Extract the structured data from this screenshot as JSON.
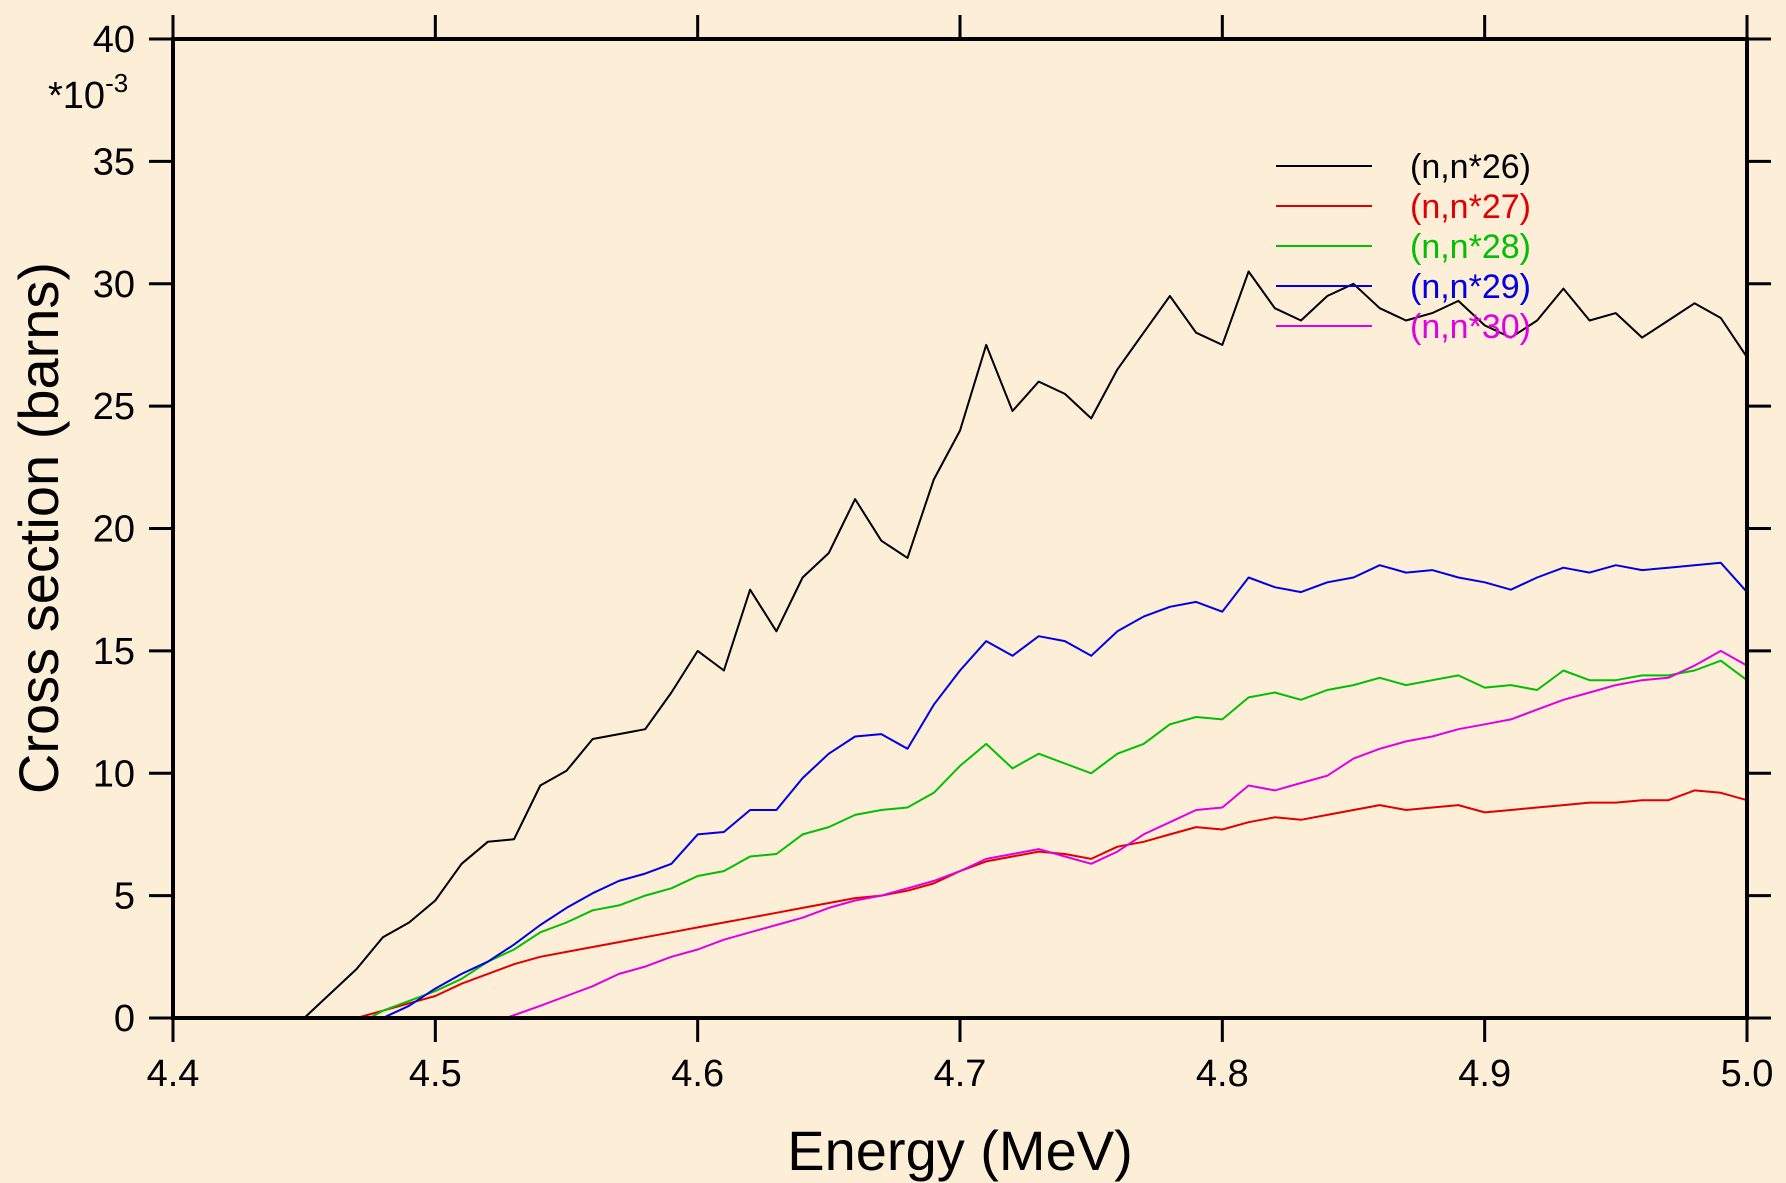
{
  "chart_data": {
    "type": "line",
    "xlabel": "Energy (MeV)",
    "ylabel": "Cross section (barns)",
    "y_multiplier_label": "*10",
    "y_multiplier_exponent": "-3",
    "xlim": [
      4.4,
      5.0
    ],
    "ylim": [
      0,
      40
    ],
    "x_ticks": [
      4.4,
      4.5,
      4.6,
      4.7,
      4.8,
      4.9,
      5.0
    ],
    "x_tick_labels": [
      "4.4",
      "4.5",
      "4.6",
      "4.7",
      "4.8",
      "4.9",
      "5.0"
    ],
    "y_ticks": [
      0,
      5,
      10,
      15,
      20,
      25,
      30,
      35,
      40
    ],
    "y_tick_labels": [
      "0",
      "5",
      "10",
      "15",
      "20",
      "25",
      "30",
      "35",
      "40"
    ],
    "grid": false,
    "legend_position": "top-right",
    "background_color": "#fdeed8",
    "series": [
      {
        "name": "(n,n*26)",
        "color": "#000000",
        "x": [
          4.45,
          4.46,
          4.47,
          4.48,
          4.49,
          4.5,
          4.51,
          4.52,
          4.53,
          4.54,
          4.55,
          4.56,
          4.57,
          4.58,
          4.59,
          4.6,
          4.61,
          4.62,
          4.63,
          4.64,
          4.65,
          4.66,
          4.67,
          4.68,
          4.69,
          4.7,
          4.71,
          4.72,
          4.73,
          4.74,
          4.75,
          4.76,
          4.77,
          4.78,
          4.79,
          4.8,
          4.81,
          4.82,
          4.83,
          4.84,
          4.85,
          4.86,
          4.87,
          4.88,
          4.89,
          4.9,
          4.91,
          4.92,
          4.93,
          4.94,
          4.95,
          4.96,
          4.97,
          4.98,
          4.99,
          5.0
        ],
        "y": [
          0,
          1.0,
          2.0,
          3.3,
          3.9,
          4.8,
          6.3,
          7.2,
          7.3,
          9.5,
          10.1,
          11.4,
          11.6,
          11.8,
          13.3,
          15.0,
          14.2,
          17.5,
          15.8,
          18.0,
          19.0,
          21.2,
          19.5,
          18.8,
          22.0,
          24.0,
          27.5,
          24.8,
          26.0,
          25.5,
          24.5,
          26.5,
          28.0,
          29.5,
          28.0,
          27.5,
          30.5,
          29.0,
          28.5,
          29.5,
          30.0,
          29.0,
          28.5,
          28.8,
          29.3,
          28.3,
          27.8,
          28.5,
          29.8,
          28.5,
          28.8,
          27.8,
          28.5,
          29.2,
          28.6,
          27.0
        ],
        "label_color": "#000000"
      },
      {
        "name": "(n,n*27)",
        "color": "#e00000",
        "x": [
          4.47,
          4.48,
          4.49,
          4.5,
          4.51,
          4.52,
          4.53,
          4.54,
          4.55,
          4.56,
          4.57,
          4.58,
          4.59,
          4.6,
          4.61,
          4.62,
          4.63,
          4.64,
          4.65,
          4.66,
          4.67,
          4.68,
          4.69,
          4.7,
          4.71,
          4.72,
          4.73,
          4.74,
          4.75,
          4.76,
          4.77,
          4.78,
          4.79,
          4.8,
          4.81,
          4.82,
          4.83,
          4.84,
          4.85,
          4.86,
          4.87,
          4.88,
          4.89,
          4.9,
          4.91,
          4.92,
          4.93,
          4.94,
          4.95,
          4.96,
          4.97,
          4.98,
          4.99,
          5.0
        ],
        "y": [
          0,
          0.3,
          0.6,
          0.9,
          1.4,
          1.8,
          2.2,
          2.5,
          2.7,
          2.9,
          3.1,
          3.3,
          3.5,
          3.7,
          3.9,
          4.1,
          4.3,
          4.5,
          4.7,
          4.9,
          5.0,
          5.2,
          5.5,
          6.0,
          6.4,
          6.6,
          6.8,
          6.7,
          6.5,
          7.0,
          7.2,
          7.5,
          7.8,
          7.7,
          8.0,
          8.2,
          8.1,
          8.3,
          8.5,
          8.7,
          8.5,
          8.6,
          8.7,
          8.4,
          8.5,
          8.6,
          8.7,
          8.8,
          8.8,
          8.9,
          8.9,
          9.3,
          9.2,
          8.9
        ],
        "label_color": "#e00000"
      },
      {
        "name": "(n,n*28)",
        "color": "#00c000",
        "x": [
          4.475,
          4.48,
          4.49,
          4.5,
          4.51,
          4.52,
          4.53,
          4.54,
          4.55,
          4.56,
          4.57,
          4.58,
          4.59,
          4.6,
          4.61,
          4.62,
          4.63,
          4.64,
          4.65,
          4.66,
          4.67,
          4.68,
          4.69,
          4.7,
          4.71,
          4.72,
          4.73,
          4.74,
          4.75,
          4.76,
          4.77,
          4.78,
          4.79,
          4.8,
          4.81,
          4.82,
          4.83,
          4.84,
          4.85,
          4.86,
          4.87,
          4.88,
          4.89,
          4.9,
          4.91,
          4.92,
          4.93,
          4.94,
          4.95,
          4.96,
          4.97,
          4.98,
          4.99,
          5.0
        ],
        "y": [
          0,
          0.3,
          0.7,
          1.1,
          1.6,
          2.3,
          2.8,
          3.5,
          3.9,
          4.4,
          4.6,
          5.0,
          5.3,
          5.8,
          6.0,
          6.6,
          6.7,
          7.5,
          7.8,
          8.3,
          8.5,
          8.6,
          9.2,
          10.3,
          11.2,
          10.2,
          10.8,
          10.4,
          10.0,
          10.8,
          11.2,
          12.0,
          12.3,
          12.2,
          13.1,
          13.3,
          13.0,
          13.4,
          13.6,
          13.9,
          13.6,
          13.8,
          14.0,
          13.5,
          13.6,
          13.4,
          14.2,
          13.8,
          13.8,
          14.0,
          14.0,
          14.2,
          14.6,
          13.8
        ],
        "label_color": "#00c000"
      },
      {
        "name": "(n,n*29)",
        "color": "#0000e0",
        "x": [
          4.48,
          4.49,
          4.5,
          4.51,
          4.52,
          4.53,
          4.54,
          4.55,
          4.56,
          4.57,
          4.58,
          4.59,
          4.6,
          4.61,
          4.62,
          4.63,
          4.64,
          4.65,
          4.66,
          4.67,
          4.68,
          4.69,
          4.7,
          4.71,
          4.72,
          4.73,
          4.74,
          4.75,
          4.76,
          4.77,
          4.78,
          4.79,
          4.8,
          4.81,
          4.82,
          4.83,
          4.84,
          4.85,
          4.86,
          4.87,
          4.88,
          4.89,
          4.9,
          4.91,
          4.92,
          4.93,
          4.94,
          4.95,
          4.96,
          4.97,
          4.98,
          4.99,
          5.0
        ],
        "y": [
          0,
          0.5,
          1.2,
          1.8,
          2.3,
          3.0,
          3.8,
          4.5,
          5.1,
          5.6,
          5.9,
          6.3,
          7.5,
          7.6,
          8.5,
          8.5,
          9.8,
          10.8,
          11.5,
          11.6,
          11.0,
          12.8,
          14.2,
          15.4,
          14.8,
          15.6,
          15.4,
          14.8,
          15.8,
          16.4,
          16.8,
          17.0,
          16.6,
          18.0,
          17.6,
          17.4,
          17.8,
          18.0,
          18.5,
          18.2,
          18.3,
          18.0,
          17.8,
          17.5,
          18.0,
          18.4,
          18.2,
          18.5,
          18.3,
          18.4,
          18.5,
          18.6,
          17.4
        ],
        "label_color": "#0000e0"
      },
      {
        "name": "(n,n*30)",
        "color": "#e000e0",
        "x": [
          4.527,
          4.54,
          4.55,
          4.56,
          4.57,
          4.58,
          4.59,
          4.6,
          4.61,
          4.62,
          4.63,
          4.64,
          4.65,
          4.66,
          4.67,
          4.68,
          4.69,
          4.7,
          4.71,
          4.72,
          4.73,
          4.74,
          4.75,
          4.76,
          4.77,
          4.78,
          4.79,
          4.8,
          4.81,
          4.82,
          4.83,
          4.84,
          4.85,
          4.86,
          4.87,
          4.88,
          4.89,
          4.9,
          4.91,
          4.92,
          4.93,
          4.94,
          4.95,
          4.96,
          4.97,
          4.98,
          4.99,
          5.0
        ],
        "y": [
          0,
          0.5,
          0.9,
          1.3,
          1.8,
          2.1,
          2.5,
          2.8,
          3.2,
          3.5,
          3.8,
          4.1,
          4.5,
          4.8,
          5.0,
          5.3,
          5.6,
          6.0,
          6.5,
          6.7,
          6.9,
          6.6,
          6.3,
          6.8,
          7.5,
          8.0,
          8.5,
          8.6,
          9.5,
          9.3,
          9.6,
          9.9,
          10.6,
          11.0,
          11.3,
          11.5,
          11.8,
          12.0,
          12.2,
          12.6,
          13.0,
          13.3,
          13.6,
          13.8,
          13.9,
          14.4,
          15.0,
          14.4
        ],
        "label_color": "#e000e0"
      }
    ]
  }
}
